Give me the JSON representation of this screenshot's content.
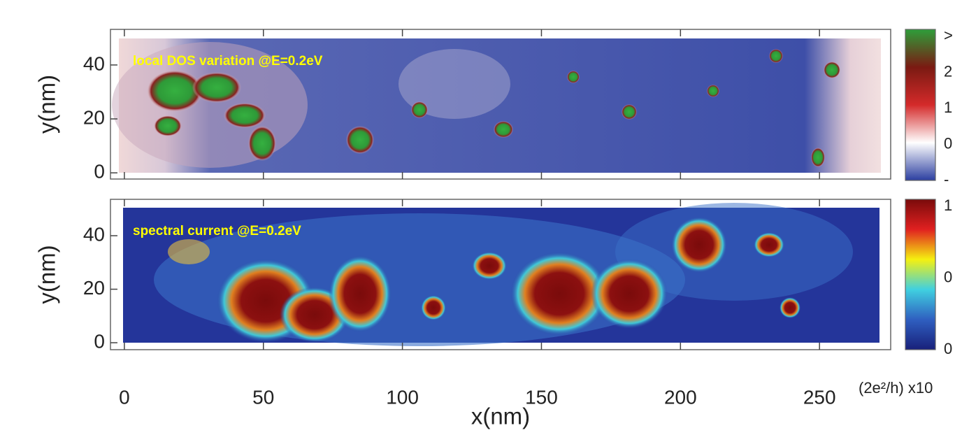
{
  "chart_data": [
    {
      "type": "heatmap",
      "annotation": "local DOS variation @E=0.2eV",
      "y_label": "y(nm)",
      "xlim": [
        -5,
        275.6
      ],
      "ylim": [
        -2.3,
        53.2
      ],
      "yticks": [
        0,
        20,
        40
      ],
      "colorbar": {
        "colors": [
          "#2e9e3a",
          "#7a1a12",
          "#d42a2a",
          "#ffffff",
          "#2b3ea0"
        ],
        "labels": [
          ">",
          "2",
          "1",
          "0",
          "-"
        ]
      }
    },
    {
      "type": "heatmap",
      "annotation": "spectral current @E=0.2eV",
      "y_label": "y(nm)",
      "x_label": "x(nm)",
      "xlim": [
        -5,
        275.6
      ],
      "ylim": [
        -2.6,
        53.6
      ],
      "yticks": [
        0,
        20,
        40
      ],
      "xticks": [
        0,
        50,
        100,
        150,
        200,
        250
      ],
      "colorbar": {
        "colors": [
          "#7a0b0b",
          "#e02020",
          "#f5f010",
          "#40d0e0",
          "#2f5fc0",
          "#18207a"
        ],
        "labels": [
          "1",
          "0",
          "0"
        ],
        "unit": "(2e²/h) x10"
      }
    }
  ]
}
